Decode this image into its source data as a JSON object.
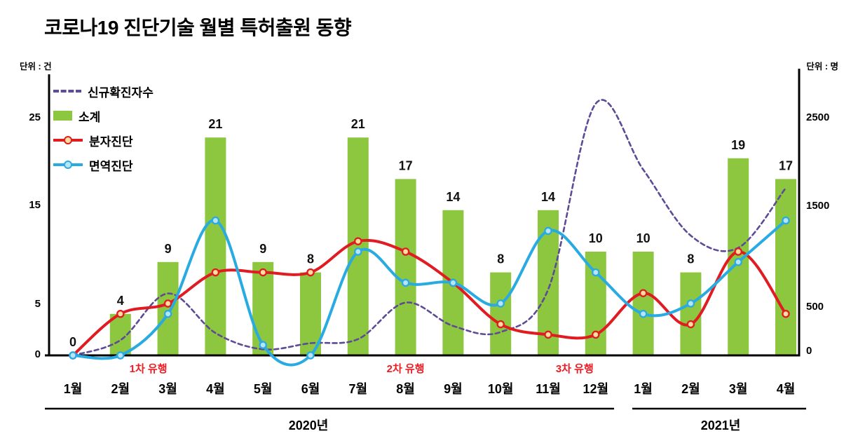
{
  "page": {
    "title": "코로나19 진단기술 월별 특허출원 동향"
  },
  "axes": {
    "left_unit": "단위 : 건",
    "right_unit": "단위 : 명"
  },
  "legend": {
    "items": [
      {
        "label": "신규확진자수",
        "swatch": "dashed-line"
      },
      {
        "label": "소계",
        "swatch": "bar"
      },
      {
        "label": "분자진단",
        "swatch": "line-with-marker"
      },
      {
        "label": "면역진단",
        "swatch": "line-with-marker"
      }
    ]
  },
  "chart_data": {
    "type": "combo: bar + smooth lines (dual axis)",
    "title": "코로나19 진단기술 월별 특허출원 동향",
    "categories": [
      "1월",
      "2월",
      "3월",
      "4월",
      "5월",
      "6월",
      "7월",
      "8월",
      "9월",
      "10월",
      "11월",
      "12월",
      "1월",
      "2월",
      "3월",
      "4월"
    ],
    "year_groups": [
      {
        "label": "2020년",
        "months": 12
      },
      {
        "label": "2021년",
        "months": 4
      }
    ],
    "left_axis": {
      "unit": "건",
      "ticks": [
        0,
        5,
        15,
        25
      ],
      "range": [
        0,
        28
      ],
      "grid": false
    },
    "right_axis": {
      "unit": "명",
      "ticks": [
        0,
        500,
        1500,
        2500
      ],
      "range": [
        0,
        2800
      ],
      "grid": false
    },
    "series": [
      {
        "id": "new-cases",
        "name": "신규확진자수",
        "type": "line",
        "style": "dashed",
        "axis": "right",
        "color": "#5e4b96",
        "values": [
          0,
          150,
          610,
          220,
          60,
          120,
          160,
          520,
          290,
          230,
          650,
          2480,
          1830,
          1180,
          1060,
          1650
        ]
      },
      {
        "id": "subtotal",
        "name": "소계",
        "type": "bar",
        "axis": "left",
        "color": "#8dc63f",
        "labeled": true,
        "values": [
          0,
          4,
          9,
          21,
          9,
          8,
          21,
          17,
          14,
          8,
          14,
          10,
          10,
          8,
          19,
          17
        ]
      },
      {
        "id": "molecular",
        "name": "분자진단",
        "type": "line",
        "style": "solid",
        "axis": "left",
        "color": "#e11b22",
        "marker_fill": "#ffdf9e",
        "values": [
          0,
          4,
          5,
          8,
          8,
          8,
          11,
          10,
          7,
          3,
          2,
          2,
          6,
          3,
          10,
          4
        ]
      },
      {
        "id": "immuno",
        "name": "면역진단",
        "type": "line",
        "style": "solid",
        "axis": "left",
        "color": "#29abe2",
        "marker_fill": "#b8e4f5",
        "values": [
          0,
          0,
          4,
          13,
          1,
          0,
          10,
          7,
          7,
          5,
          12,
          8,
          4,
          5,
          9,
          13
        ]
      }
    ],
    "annotations": [
      {
        "text": "1차 유행",
        "month_index": 2,
        "color": "#ed1c24"
      },
      {
        "text": "2차 유행",
        "month_index": 7,
        "color": "#ed1c24"
      },
      {
        "text": "3차 유행",
        "month_index": 11,
        "color": "#ed1c24"
      }
    ]
  }
}
